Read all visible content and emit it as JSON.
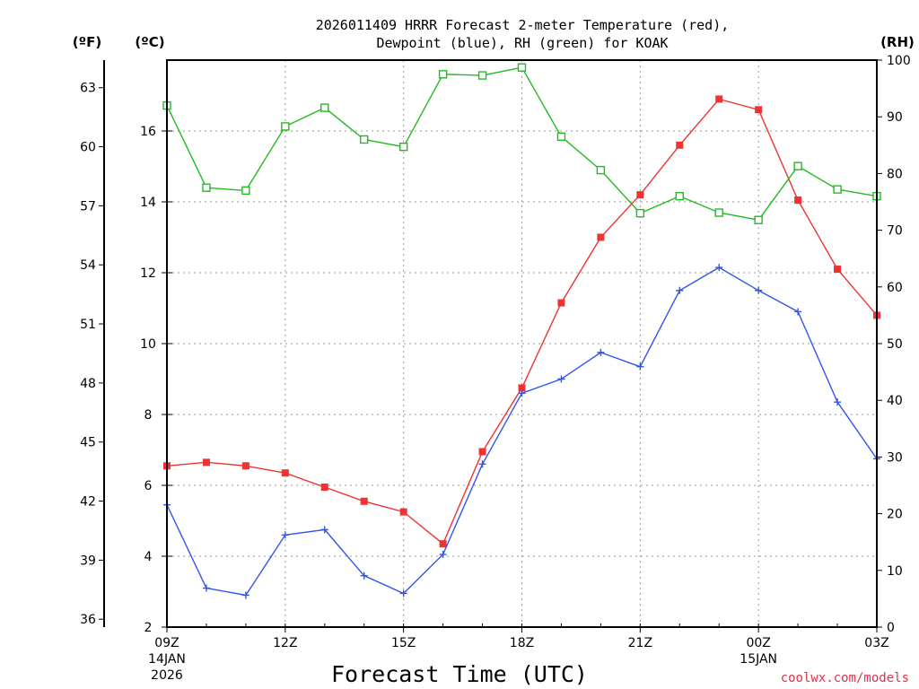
{
  "chart_data": {
    "type": "line",
    "title_lines": [
      "2026011409 HRRR Forecast 2-meter Temperature (red),",
      "Dewpoint (blue), RH (green) for KOAK"
    ],
    "units": {
      "fahrenheit": "(ºF)",
      "celsius": "(ºC)",
      "rh": "(RH)"
    },
    "xlabel": "Forecast Time (UTC)",
    "credit": "coolwx.com/models",
    "x_hours": [
      0,
      1,
      2,
      3,
      4,
      5,
      6,
      7,
      8,
      9,
      10,
      11,
      12,
      13,
      14,
      15,
      16,
      17,
      18
    ],
    "xlim": [
      0,
      18
    ],
    "x_ticks": [
      {
        "hour": 0,
        "label": "09Z",
        "sub": [
          "14JAN",
          "2026"
        ]
      },
      {
        "hour": 3,
        "label": "12Z",
        "sub": []
      },
      {
        "hour": 6,
        "label": "15Z",
        "sub": []
      },
      {
        "hour": 9,
        "label": "18Z",
        "sub": []
      },
      {
        "hour": 12,
        "label": "21Z",
        "sub": []
      },
      {
        "hour": 15,
        "label": "00Z",
        "sub": [
          "15JAN"
        ]
      },
      {
        "hour": 18,
        "label": "03Z",
        "sub": []
      }
    ],
    "ylim_c": [
      2,
      18
    ],
    "y_c_ticks": [
      2,
      4,
      6,
      8,
      10,
      12,
      14,
      16
    ],
    "y_f_ticks": [
      36,
      39,
      42,
      45,
      48,
      51,
      54,
      57,
      60,
      63
    ],
    "ylim_rh": [
      0,
      100
    ],
    "y_rh_ticks": [
      0,
      10,
      20,
      30,
      40,
      50,
      60,
      70,
      80,
      90,
      100
    ],
    "series": [
      {
        "name": "Temperature",
        "color": "#ee3333",
        "marker": "filled-square",
        "axis": "celsius",
        "values": [
          6.55,
          6.65,
          6.55,
          6.35,
          5.95,
          5.55,
          5.25,
          4.35,
          6.95,
          8.75,
          11.15,
          13.0,
          14.2,
          15.6,
          16.9,
          16.6,
          14.05,
          12.1,
          10.8
        ]
      },
      {
        "name": "Dewpoint",
        "color": "#3355ee",
        "marker": "plus",
        "axis": "celsius",
        "values": [
          5.45,
          3.1,
          2.9,
          4.6,
          4.75,
          3.45,
          2.95,
          4.05,
          6.6,
          8.6,
          9.0,
          9.75,
          9.35,
          11.5,
          12.15,
          11.5,
          10.9,
          8.35,
          6.75
        ]
      },
      {
        "name": "RH",
        "color": "#22bb22",
        "marker": "open-square",
        "axis": "rh",
        "values": [
          92,
          77.5,
          77,
          88.3,
          91.6,
          86,
          84.7,
          97.5,
          97.3,
          98.7,
          86.5,
          80.6,
          73,
          76,
          73.1,
          71.8,
          81.3,
          77.2,
          76
        ]
      }
    ]
  }
}
